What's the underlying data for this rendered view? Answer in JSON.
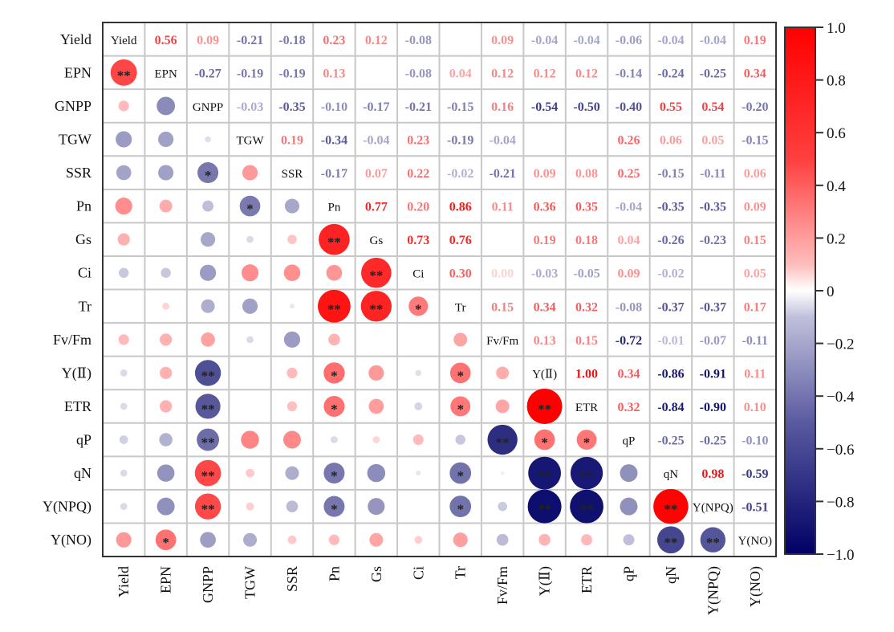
{
  "chart_data": {
    "type": "heatmap",
    "subtype": "correlation-matrix",
    "variables": [
      "Yield",
      "EPN",
      "GNPP",
      "TGW",
      "SSR",
      "Pn",
      "Gs",
      "Ci",
      "Tr",
      "Fv/Fm",
      "Y(Ⅱ)",
      "ETR",
      "qP",
      "qN",
      "Y(NPQ)",
      "Y(NO)"
    ],
    "diagonal_labels": [
      "Yield",
      "EPN",
      "GNPP",
      "TGW",
      "SSR",
      "Pn",
      "Gs",
      "Ci",
      "Tr",
      "Fv/Fm",
      "Y(Ⅱ)",
      "ETR",
      "qP",
      "qN",
      "Y(NPQ)",
      "Y(NO)"
    ],
    "upper_triangle_values": [
      [
        null,
        0.56,
        0.09,
        -0.21,
        -0.18,
        0.23,
        0.12,
        -0.08,
        null,
        0.09,
        -0.04,
        -0.04,
        -0.06,
        -0.04,
        -0.04,
        0.19
      ],
      [
        null,
        null,
        -0.27,
        -0.19,
        -0.19,
        0.13,
        null,
        -0.08,
        0.04,
        0.12,
        0.12,
        0.12,
        -0.14,
        -0.24,
        -0.25,
        0.34
      ],
      [
        null,
        null,
        null,
        -0.03,
        -0.35,
        -0.1,
        -0.17,
        -0.21,
        -0.15,
        0.16,
        -0.54,
        -0.5,
        -0.4,
        0.55,
        0.54,
        -0.2
      ],
      [
        null,
        null,
        null,
        null,
        0.19,
        -0.34,
        -0.04,
        0.23,
        -0.19,
        -0.04,
        null,
        null,
        0.26,
        0.06,
        0.05,
        -0.15
      ],
      [
        null,
        null,
        null,
        null,
        null,
        -0.17,
        0.07,
        0.22,
        -0.02,
        -0.21,
        0.09,
        0.08,
        0.25,
        -0.15,
        -0.11,
        0.06
      ],
      [
        null,
        null,
        null,
        null,
        null,
        null,
        0.77,
        0.2,
        0.86,
        0.11,
        0.36,
        0.35,
        -0.04,
        -0.35,
        -0.35,
        0.09
      ],
      [
        null,
        null,
        null,
        null,
        null,
        null,
        null,
        0.73,
        0.76,
        null,
        0.19,
        0.18,
        0.04,
        -0.26,
        -0.23,
        0.15
      ],
      [
        null,
        null,
        null,
        null,
        null,
        null,
        null,
        null,
        0.3,
        0.0,
        -0.03,
        -0.05,
        0.09,
        -0.02,
        null,
        0.05
      ],
      [
        null,
        null,
        null,
        null,
        null,
        null,
        null,
        null,
        null,
        0.15,
        0.34,
        0.32,
        -0.08,
        -0.37,
        -0.37,
        0.17
      ],
      [
        null,
        null,
        null,
        null,
        null,
        null,
        null,
        null,
        null,
        null,
        0.13,
        0.15,
        -0.72,
        -0.01,
        -0.07,
        -0.11
      ],
      [
        null,
        null,
        null,
        null,
        null,
        null,
        null,
        null,
        null,
        null,
        null,
        1.0,
        0.34,
        -0.86,
        -0.91,
        0.11
      ],
      [
        null,
        null,
        null,
        null,
        null,
        null,
        null,
        null,
        null,
        null,
        null,
        null,
        0.32,
        -0.84,
        -0.9,
        0.1
      ],
      [
        null,
        null,
        null,
        null,
        null,
        null,
        null,
        null,
        null,
        null,
        null,
        null,
        null,
        -0.25,
        -0.25,
        -0.1
      ],
      [
        null,
        null,
        null,
        null,
        null,
        null,
        null,
        null,
        null,
        null,
        null,
        null,
        null,
        null,
        0.98,
        -0.59
      ],
      [
        null,
        null,
        null,
        null,
        null,
        null,
        null,
        null,
        null,
        null,
        null,
        null,
        null,
        null,
        null,
        -0.51
      ],
      [
        null,
        null,
        null,
        null,
        null,
        null,
        null,
        null,
        null,
        null,
        null,
        null,
        null,
        null,
        null,
        null
      ]
    ],
    "upper_triangle_text": [
      [
        null,
        "0.56",
        "0.09",
        "-0.21",
        "-0.18",
        "0.23",
        "0.12",
        "-0.08",
        null,
        "0.09",
        "-0.04",
        "-0.04",
        "-0.06",
        "-0.04",
        "-0.04",
        "0.19"
      ],
      [
        null,
        null,
        "-0.27",
        "-0.19",
        "-0.19",
        "0.13",
        null,
        "-0.08",
        "0.04",
        "0.12",
        "0.12",
        "0.12",
        "-0.14",
        "-0.24",
        "-0.25",
        "0.34"
      ],
      [
        null,
        null,
        null,
        "-0.03",
        "-0.35",
        "-0.10",
        "-0.17",
        "-0.21",
        "-0.15",
        "0.16",
        "-0.54",
        "-0.50",
        "-0.40",
        "0.55",
        "0.54",
        "-0.20"
      ],
      [
        null,
        null,
        null,
        null,
        "0.19",
        "-0.34",
        "-0.04",
        "0.23",
        "-0.19",
        "-0.04",
        null,
        null,
        "0.26",
        "0.06",
        "0.05",
        "-0.15"
      ],
      [
        null,
        null,
        null,
        null,
        null,
        "-0.17",
        "0.07",
        "0.22",
        "-0.02",
        "-0.21",
        "0.09",
        "0.08",
        "0.25",
        "-0.15",
        "-0.11",
        "0.06"
      ],
      [
        null,
        null,
        null,
        null,
        null,
        null,
        "0.77",
        "0.20",
        "0.86",
        "0.11",
        "0.36",
        "0.35",
        "-0.04",
        "-0.35",
        "-0.35",
        "0.09"
      ],
      [
        null,
        null,
        null,
        null,
        null,
        null,
        null,
        "0.73",
        "0.76",
        null,
        "0.19",
        "0.18",
        "0.04",
        "-0.26",
        "-0.23",
        "0.15"
      ],
      [
        null,
        null,
        null,
        null,
        null,
        null,
        null,
        null,
        "0.30",
        "0.00",
        "-0.03",
        "-0.05",
        "0.09",
        "-0.02",
        null,
        "0.05"
      ],
      [
        null,
        null,
        null,
        null,
        null,
        null,
        null,
        null,
        null,
        "0.15",
        "0.34",
        "0.32",
        "-0.08",
        "-0.37",
        "-0.37",
        "0.17"
      ],
      [
        null,
        null,
        null,
        null,
        null,
        null,
        null,
        null,
        null,
        null,
        "0.13",
        "0.15",
        "-0.72",
        "-0.01",
        "-0.07",
        "-0.11"
      ],
      [
        null,
        null,
        null,
        null,
        null,
        null,
        null,
        null,
        null,
        null,
        null,
        "1.00",
        "0.34",
        "-0.86",
        "-0.91",
        "0.11"
      ],
      [
        null,
        null,
        null,
        null,
        null,
        null,
        null,
        null,
        null,
        null,
        null,
        null,
        "0.32",
        "-0.84",
        "-0.90",
        "0.10"
      ],
      [
        null,
        null,
        null,
        null,
        null,
        null,
        null,
        null,
        null,
        null,
        null,
        null,
        null,
        "-0.25",
        "-0.25",
        "-0.10"
      ],
      [
        null,
        null,
        null,
        null,
        null,
        null,
        null,
        null,
        null,
        null,
        null,
        null,
        null,
        null,
        "0.98",
        "-0.59"
      ],
      [
        null,
        null,
        null,
        null,
        null,
        null,
        null,
        null,
        null,
        null,
        null,
        null,
        null,
        null,
        null,
        "-0.51"
      ],
      [
        null,
        null,
        null,
        null,
        null,
        null,
        null,
        null,
        null,
        null,
        null,
        null,
        null,
        null,
        null,
        null
      ]
    ],
    "lower_triangle_significance": [
      [],
      [
        "**"
      ],
      [
        "",
        ""
      ],
      [
        "",
        "",
        ""
      ],
      [
        "",
        "",
        "*",
        ""
      ],
      [
        "",
        "",
        "",
        "*",
        ""
      ],
      [
        "",
        "",
        "",
        "",
        "",
        "**"
      ],
      [
        "",
        "",
        "",
        "",
        "",
        "",
        "**"
      ],
      [
        "",
        "",
        "",
        "",
        "",
        "**",
        "**",
        "*"
      ],
      [
        "",
        "",
        "",
        "",
        "",
        "",
        "",
        "",
        ""
      ],
      [
        "",
        "",
        "**",
        "",
        "",
        "*",
        "",
        "",
        "*",
        ""
      ],
      [
        "",
        "",
        "**",
        "",
        "",
        "*",
        "",
        "",
        "*",
        "",
        "**"
      ],
      [
        "",
        "",
        "**",
        "",
        "",
        "",
        "",
        "",
        "",
        "**",
        "*",
        "*"
      ],
      [
        "",
        "",
        "**",
        "",
        "",
        "*",
        "",
        "",
        "*",
        "",
        "**",
        "**",
        ""
      ],
      [
        "",
        "",
        "**",
        "",
        "",
        "*",
        "",
        "",
        "*",
        "",
        "**",
        "**",
        "",
        "**"
      ],
      [
        "",
        "*",
        "",
        "",
        "",
        "",
        "",
        "",
        "",
        "",
        "",
        "",
        "",
        "**",
        "**"
      ]
    ],
    "colorbar": {
      "range": [
        -1.0,
        1.0
      ],
      "ticks": [
        1.0,
        0.8,
        0.6,
        0.4,
        0.2,
        0,
        -0.2,
        -0.4,
        -0.6,
        -0.8,
        -1.0
      ],
      "tick_labels": [
        "1.0",
        "0.8",
        "0.6",
        "0.4",
        "0.2",
        "0",
        "−0.2",
        "−0.4",
        "−0.6",
        "−0.8",
        "−1.0"
      ],
      "colors": {
        "positive": "#ff0000",
        "zero": "#ffffff",
        "negative": "#000066"
      },
      "placement": "right"
    },
    "grid": true,
    "lower_mark": "circle",
    "upper_mark": "number"
  }
}
